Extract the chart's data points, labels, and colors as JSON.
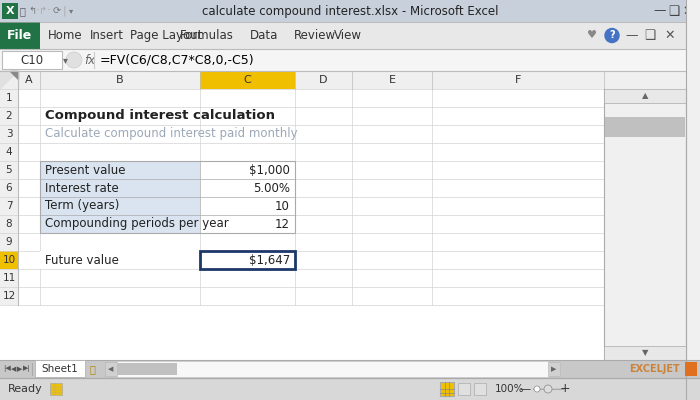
{
  "title_bar_text": "calculate compound interest.xlsx - Microsoft Excel",
  "formula_bar_cell": "C10",
  "formula_bar_formula": "=FV(C6/C8,C7*C8,0,-C5)",
  "title_text": "Compound interest calculation",
  "subtitle_text": "Calculate compound interest paid monthly",
  "table_labels": [
    "Present value",
    "Interest rate",
    "Term (years)",
    "Compounding periods per year"
  ],
  "table_values": [
    "$1,000",
    "5.00%",
    "10",
    "12"
  ],
  "future_label": "Future value",
  "future_value": "$1,647",
  "ribbon_tabs": [
    "File",
    "Home",
    "Insert",
    "Page Layout",
    "Formulas",
    "Data",
    "Review",
    "View"
  ],
  "col_names": [
    "A",
    "B",
    "C",
    "D",
    "E",
    "F"
  ],
  "title_bar_bg": "#C8D0DC",
  "title_bar_text_color": "#333333",
  "ribbon_bg": "#E8E8E8",
  "file_tab_green": "#217346",
  "formula_bar_bg": "#FFFFFF",
  "formula_bar_border": "#CCCCCC",
  "col_header_bg": "#EFEFEF",
  "col_header_active_bg": "#F0C000",
  "col_header_border": "#BBBBBB",
  "row_header_bg": "#EFEFEF",
  "row_header_active_bg": "#F0C000",
  "grid_color": "#D3D3D3",
  "table_label_bg": "#D9E4F0",
  "table_value_bg": "#FFFFFF",
  "table_border": "#AAAAAA",
  "active_cell_border": "#1C3868",
  "sheet_tab_area_bg": "#C8C8C8",
  "sheet_tab_bg": "#FFFFFF",
  "status_bar_bg": "#D8D8D8",
  "scrollbar_bg": "#F0F0F0",
  "scrollbar_thumb": "#C0C0C0",
  "subtitle_color": "#9CA8B8",
  "right_scroll_bg": "#F0F0F0",
  "exceljet_color": "#CC6600",
  "bg_outer": "#C0C8D4"
}
